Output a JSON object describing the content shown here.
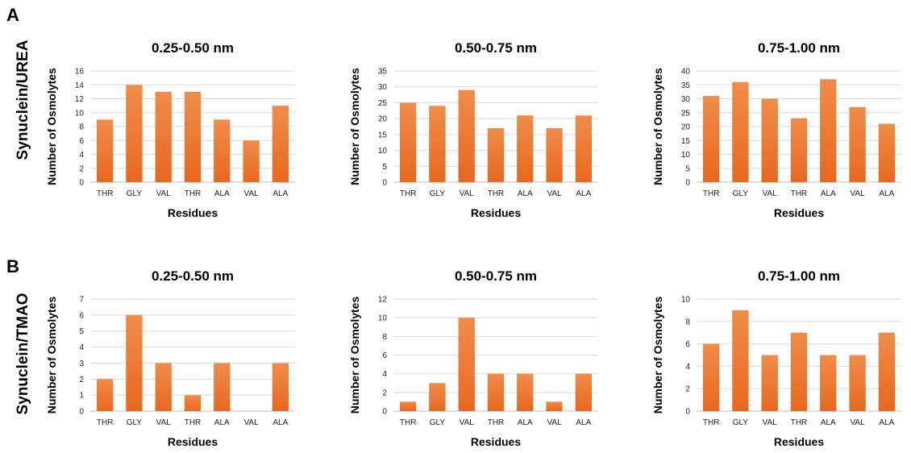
{
  "figure": {
    "panel_labels": [
      "A",
      "B"
    ],
    "row_labels": [
      "Synuclein/UREA",
      "Synuclein/TMAO"
    ]
  },
  "colors": {
    "bar_top": "#f08c4a",
    "bar_bottom": "#e8681e"
  },
  "chart_data": [
    {
      "type": "bar",
      "row": 0,
      "col": 0,
      "title": "0.25-0.50 nm",
      "categories": [
        "THR",
        "GLY",
        "VAL",
        "THR",
        "ALA",
        "VAL",
        "ALA"
      ],
      "values": [
        9,
        14,
        13,
        13,
        9,
        6,
        11
      ],
      "xlabel": "Residues",
      "ylabel": "Number of Osmolytes",
      "ylim": [
        0,
        16
      ],
      "yticks": [
        0,
        2,
        4,
        6,
        8,
        10,
        12,
        14,
        16
      ],
      "grid": true
    },
    {
      "type": "bar",
      "row": 0,
      "col": 1,
      "title": "0.50-0.75 nm",
      "categories": [
        "THR",
        "GLY",
        "VAL",
        "THR",
        "ALA",
        "VAL",
        "ALA"
      ],
      "values": [
        25,
        24,
        29,
        17,
        21,
        17,
        21
      ],
      "xlabel": "Residues",
      "ylabel": "Number of Osmolytes",
      "ylim": [
        0,
        35
      ],
      "yticks": [
        0,
        5,
        10,
        15,
        20,
        25,
        30,
        35
      ],
      "grid": true
    },
    {
      "type": "bar",
      "row": 0,
      "col": 2,
      "title": "0.75-1.00 nm",
      "categories": [
        "THR",
        "GLY",
        "VAL",
        "THR",
        "ALA",
        "VAL",
        "ALA"
      ],
      "values": [
        31,
        36,
        30,
        23,
        37,
        27,
        21
      ],
      "xlabel": "Residues",
      "ylabel": "Number of Osmolytes",
      "ylim": [
        0,
        40
      ],
      "yticks": [
        0,
        5,
        10,
        15,
        20,
        25,
        30,
        35,
        40
      ],
      "grid": true
    },
    {
      "type": "bar",
      "row": 1,
      "col": 0,
      "title": "0.25-0.50 nm",
      "categories": [
        "THR",
        "GLY",
        "VAL",
        "THR",
        "ALA",
        "VAL",
        "ALA"
      ],
      "values": [
        2,
        6,
        3,
        1,
        3,
        0,
        3
      ],
      "xlabel": "Residues",
      "ylabel": "Number of Osmolytes",
      "ylim": [
        0,
        7
      ],
      "yticks": [
        0,
        1,
        2,
        3,
        4,
        5,
        6,
        7
      ],
      "grid": true
    },
    {
      "type": "bar",
      "row": 1,
      "col": 1,
      "title": "0.50-0.75 nm",
      "categories": [
        "THR",
        "GLY",
        "VAL",
        "THR",
        "ALA",
        "VAL",
        "ALA"
      ],
      "values": [
        1,
        3,
        10,
        4,
        4,
        1,
        4
      ],
      "xlabel": "Residues",
      "ylabel": "Number of Osmolytes",
      "ylim": [
        0,
        12
      ],
      "yticks": [
        0,
        2,
        4,
        6,
        8,
        10,
        12
      ],
      "grid": true
    },
    {
      "type": "bar",
      "row": 1,
      "col": 2,
      "title": "0.75-1.00 nm",
      "categories": [
        "THR",
        "GLY",
        "VAL",
        "THR",
        "ALA",
        "VAL",
        "ALA"
      ],
      "values": [
        6,
        9,
        5,
        7,
        5,
        5,
        7
      ],
      "xlabel": "Residues",
      "ylabel": "Number of Osmolytes",
      "ylim": [
        0,
        10
      ],
      "yticks": [
        0,
        2,
        4,
        6,
        8,
        10
      ],
      "grid": true
    }
  ]
}
